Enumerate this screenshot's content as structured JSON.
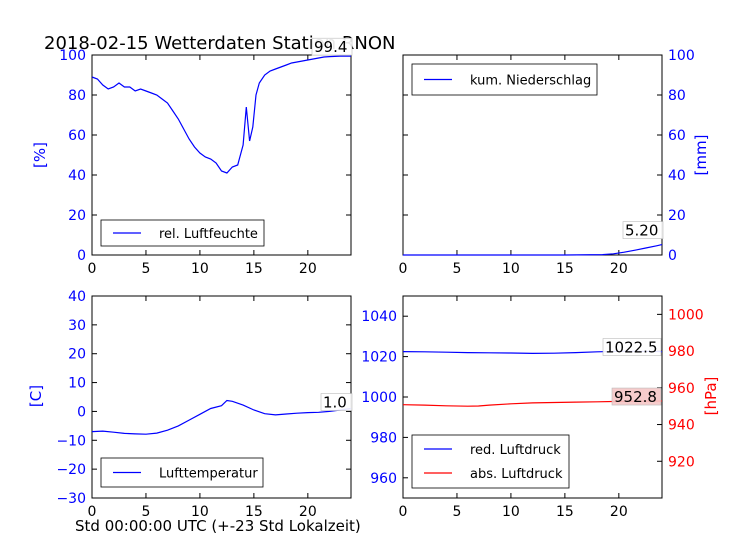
{
  "title": "2018-02-15 Wetterdaten Station RNON",
  "xlabel": "Std 00:00:00 UTC (+-23 Std Lokalzeit)",
  "colors": {
    "blue": "#0000ff",
    "red": "#ff0000",
    "frame": "#000000"
  },
  "chart_data": [
    {
      "id": "humidity",
      "type": "line",
      "ylabel": "[%]",
      "xlim": [
        0,
        24
      ],
      "ylim": [
        0,
        100
      ],
      "xticks": [
        "0",
        "5",
        "10",
        "15",
        "20"
      ],
      "yticks": [
        "0",
        "20",
        "40",
        "60",
        "80",
        "100"
      ],
      "legend": {
        "position": "lower-center",
        "entries": [
          "rel. Luftfeuchte"
        ]
      },
      "last_value": "99.4",
      "series": [
        {
          "name": "rel. Luftfeuchte",
          "color": "#0000ff",
          "x": [
            0,
            0.5,
            1,
            1.5,
            2,
            2.5,
            3,
            3.5,
            4,
            4.5,
            5,
            5.5,
            6,
            6.5,
            7,
            7.5,
            8,
            8.5,
            9,
            9.5,
            10,
            10.5,
            11,
            11.5,
            12,
            12.5,
            13,
            13.5,
            14,
            14.3,
            14.6,
            14.9,
            15.2,
            15.5,
            16,
            16.5,
            17,
            17.5,
            18,
            18.5,
            19,
            19.5,
            20,
            20.5,
            21,
            21.5,
            22,
            22.5,
            23,
            23.5,
            24
          ],
          "y": [
            89,
            88,
            85,
            83,
            84,
            86,
            84,
            84,
            82,
            83,
            82,
            81,
            80,
            78,
            76,
            72,
            68,
            63,
            58,
            54,
            51,
            49,
            48,
            46,
            42,
            41,
            44,
            45,
            55,
            74,
            57,
            64,
            80,
            86,
            90,
            92,
            93,
            94,
            95,
            96,
            96.5,
            97,
            97.5,
            98,
            98.5,
            99,
            99.2,
            99.3,
            99.4,
            99.4,
            99.4
          ]
        }
      ]
    },
    {
      "id": "precipitation",
      "type": "line",
      "ylabel": "[mm]",
      "xlim": [
        0,
        24
      ],
      "ylim": [
        0,
        100
      ],
      "xticks": [
        "0",
        "5",
        "10",
        "15",
        "20"
      ],
      "yticks": [
        "0",
        "20",
        "40",
        "60",
        "80",
        "100"
      ],
      "legend": {
        "position": "top-left",
        "entries": [
          "kum. Niederschlag"
        ]
      },
      "last_value": "5.20",
      "series": [
        {
          "name": "kum. Niederschlag",
          "color": "#0000ff",
          "x": [
            0,
            5,
            10,
            15,
            18.5,
            19.5,
            20.5,
            21.5,
            22.5,
            23.5,
            24
          ],
          "y": [
            0,
            0,
            0,
            0,
            0.2,
            0.6,
            1.4,
            2.4,
            3.5,
            4.6,
            5.2
          ]
        }
      ]
    },
    {
      "id": "temperature",
      "type": "line",
      "ylabel": "[C]",
      "xlim": [
        0,
        24
      ],
      "ylim": [
        -30,
        40
      ],
      "xticks": [
        "0",
        "5",
        "10",
        "15",
        "20"
      ],
      "yticks": [
        "−30",
        "−20",
        "−10",
        "0",
        "10",
        "20",
        "30",
        "40"
      ],
      "legend": {
        "position": "lower-center",
        "entries": [
          "Lufttemperatur"
        ]
      },
      "last_value": "1.0",
      "series": [
        {
          "name": "Lufttemperatur",
          "color": "#0000ff",
          "x": [
            0,
            1,
            2,
            3,
            4,
            5,
            6,
            7,
            8,
            9,
            10,
            11,
            12,
            12.5,
            13,
            14,
            15,
            16,
            17,
            18,
            19,
            20,
            21,
            22,
            23,
            24
          ],
          "y": [
            -7,
            -6.8,
            -7.2,
            -7.6,
            -7.8,
            -7.9,
            -7.5,
            -6.5,
            -5,
            -3,
            -1,
            1,
            2,
            3.8,
            3.5,
            2.2,
            0.5,
            -0.8,
            -1.2,
            -0.9,
            -0.6,
            -0.4,
            -0.3,
            0,
            0.5,
            1.0
          ]
        }
      ]
    },
    {
      "id": "pressure",
      "type": "line",
      "ylabel": "[hPa]",
      "xlim": [
        0,
        24
      ],
      "ylim": [
        950,
        1050
      ],
      "ylim_right": [
        900,
        1010
      ],
      "xticks": [
        "0",
        "5",
        "10",
        "15",
        "20"
      ],
      "yticks": [
        "960",
        "980",
        "1000",
        "1020",
        "1040"
      ],
      "yticks_right": [
        "920",
        "940",
        "960",
        "980",
        "1000"
      ],
      "legend": {
        "position": "lower-left",
        "entries": [
          "red. Luftdruck",
          "abs. Luftdruck"
        ]
      },
      "last_values": [
        "1022.5",
        "952.8"
      ],
      "series": [
        {
          "name": "red. Luftdruck",
          "color": "#0000ff",
          "axis": "left",
          "x": [
            0,
            2,
            4,
            6,
            8,
            10,
            12,
            14,
            16,
            18,
            20,
            22,
            24
          ],
          "y": [
            1022.5,
            1022.4,
            1022.2,
            1022.0,
            1021.9,
            1021.8,
            1021.6,
            1021.7,
            1022.0,
            1022.4,
            1022.6,
            1022.6,
            1022.5
          ]
        },
        {
          "name": "abs. Luftdruck",
          "color": "#ff0000",
          "axis": "right",
          "x": [
            0,
            2,
            4,
            6,
            7,
            8,
            10,
            12,
            14,
            16,
            18,
            20,
            22,
            24
          ],
          "y": [
            950.8,
            950.6,
            950.2,
            950.0,
            950.1,
            950.6,
            951.3,
            951.8,
            952.0,
            952.2,
            952.4,
            952.6,
            952.7,
            952.8
          ]
        }
      ]
    }
  ]
}
